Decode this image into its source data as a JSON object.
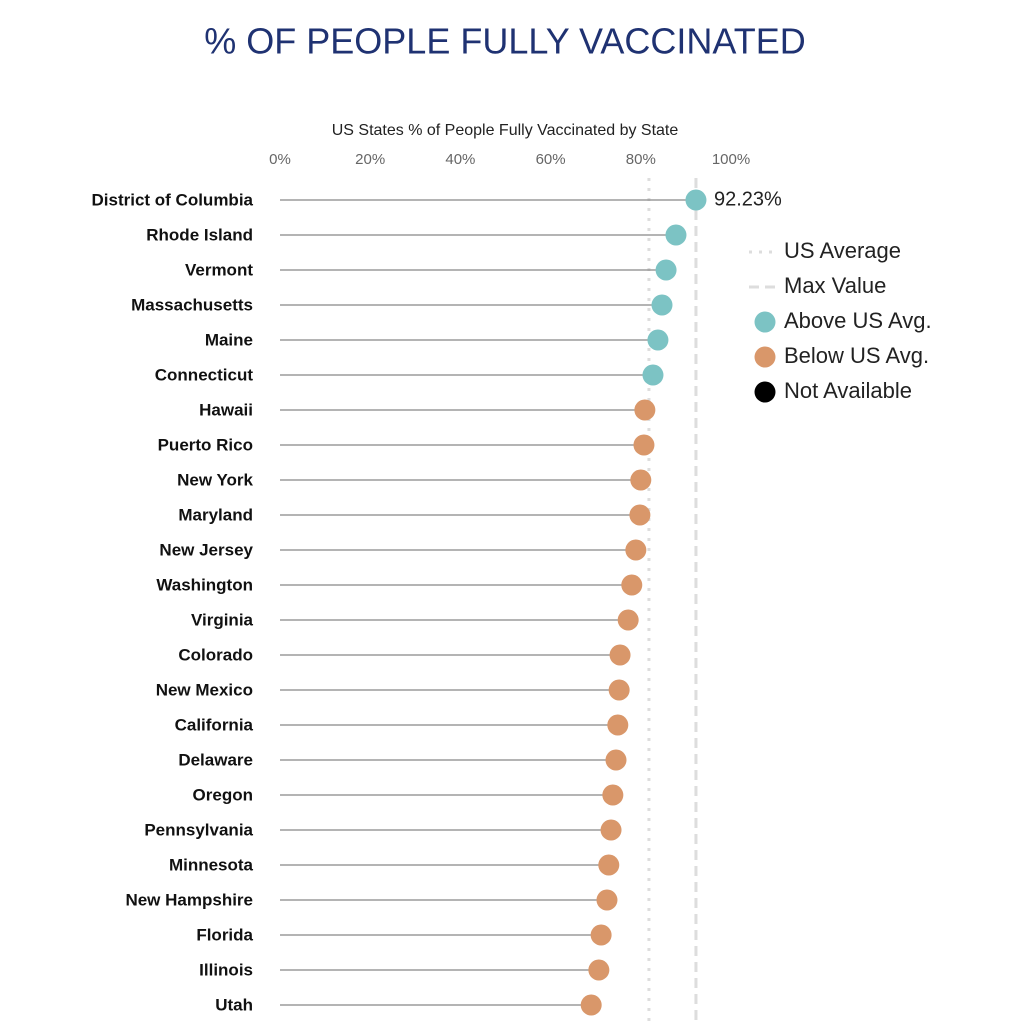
{
  "chart_data": {
    "type": "lollipop",
    "title": "% OF PEOPLE FULLY VACCINATED",
    "subtitle": "US States % of People Fully Vaccinated by State",
    "categories": [
      "District of Columbia",
      "Rhode Island",
      "Vermont",
      "Massachusetts",
      "Maine",
      "Connecticut",
      "Hawaii",
      "Puerto Rico",
      "New York",
      "Maryland",
      "New Jersey",
      "Washington",
      "Virginia",
      "Colorado",
      "New Mexico",
      "California",
      "Delaware",
      "Oregon",
      "Pennsylvania",
      "Minnesota",
      "New Hampshire",
      "Florida",
      "Illinois",
      "Utah"
    ],
    "values": [
      92.23,
      87.8,
      85.6,
      84.7,
      83.8,
      82.7,
      80.9,
      80.7,
      80.0,
      79.8,
      78.9,
      78.0,
      77.2,
      75.4,
      75.2,
      74.9,
      74.5,
      73.8,
      73.4,
      72.9,
      72.5,
      71.2,
      70.7,
      69.0
    ],
    "value_labels": [
      "92.23%",
      null,
      null,
      null,
      null,
      null,
      null,
      null,
      null,
      null,
      null,
      null,
      null,
      null,
      null,
      null,
      null,
      null,
      null,
      null,
      null,
      null,
      null,
      null
    ],
    "xlim": [
      0,
      100
    ],
    "xticks": [
      {
        "value": 0,
        "label": "0%"
      },
      {
        "value": 20,
        "label": "20%"
      },
      {
        "value": 40,
        "label": "40%"
      },
      {
        "value": 60,
        "label": "60%"
      },
      {
        "value": 80,
        "label": "80%"
      },
      {
        "value": 100,
        "label": "100%"
      }
    ],
    "reference_lines": [
      {
        "name": "US Average",
        "value": 81.8,
        "style": "dotted"
      },
      {
        "name": "Max Value",
        "value": 92.23,
        "style": "dashed"
      }
    ],
    "color_groups": [
      {
        "name": "Above US Avg.",
        "color": "#7cc3c4"
      },
      {
        "name": "Below US Avg.",
        "color": "#d9976a"
      },
      {
        "name": "Not Available",
        "color": "#000000"
      }
    ]
  }
}
